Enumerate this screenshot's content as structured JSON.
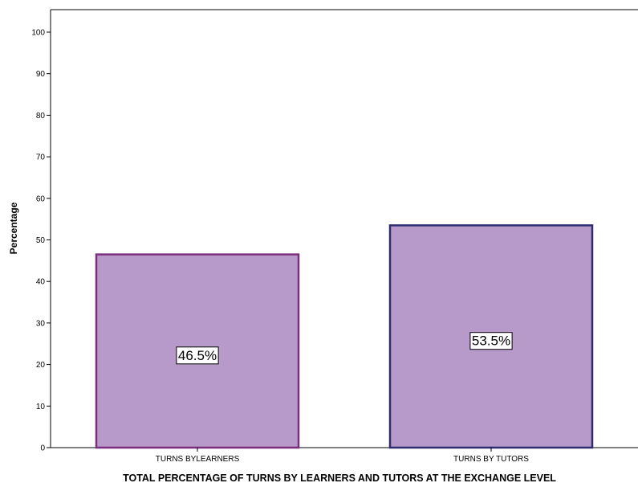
{
  "chart_data": {
    "type": "bar",
    "categories": [
      "TURNS BYLEARNERS",
      "TURNS BY TUTORS"
    ],
    "values": [
      46.5,
      53.5
    ],
    "data_labels": [
      "46.5%",
      "53.5%"
    ],
    "xlabel": "TOTAL PERCENTAGE OF TURNS BY LEARNERS AND TUTORS AT THE EXCHANGE LEVEL",
    "ylabel": "Percentage",
    "ylim": [
      0,
      100
    ],
    "yticks": [
      0,
      10,
      20,
      30,
      40,
      50,
      60,
      70,
      80,
      90,
      100
    ],
    "grid": false,
    "colors": {
      "bar_fill": "#b89aca",
      "bar_outlines": [
        "#7a2f7e",
        "#2d2c6e"
      ],
      "axis": "#000000"
    }
  }
}
